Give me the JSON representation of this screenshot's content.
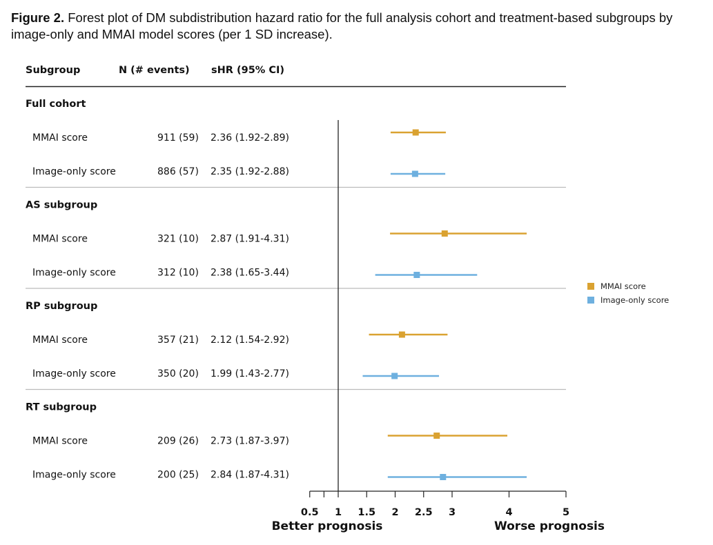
{
  "caption": {
    "label": "Figure 2.",
    "text": " Forest plot of DM subdistribution hazard ratio for the full analysis cohort and treatment-based subgroups by image-only and MMAI model scores (per 1 SD increase)."
  },
  "table_headers": {
    "subgroup": "Subgroup",
    "n_events": "N (# events)",
    "shr": "sHR (95% CI)"
  },
  "colors": {
    "mmai": "#DAA231",
    "image_only": "#6EB0DF",
    "axis": "#222222",
    "divider": "#bbbbbb"
  },
  "chart_data": {
    "type": "forest",
    "x_scale": "linear",
    "xlim": [
      0.5,
      5
    ],
    "x_ticks": [
      0.5,
      0.75,
      1,
      1.5,
      2,
      2.5,
      3,
      4,
      5
    ],
    "x_tick_labels": [
      "0.5",
      "",
      "1",
      "1.5",
      "2",
      "2.5",
      "3",
      "4",
      "5"
    ],
    "reference_line": 1,
    "xlabel_left": "Better prognosis",
    "xlabel_right": "Worse prognosis",
    "legend": [
      "MMAI score",
      "Image-only score"
    ],
    "legend_position": "right",
    "groups": [
      {
        "name": "Full cohort",
        "rows": [
          {
            "label": "MMAI score",
            "series": "mmai",
            "n_events": "911 (59)",
            "shr_text": "2.36 (1.92-2.89)",
            "hr": 2.36,
            "lo": 1.92,
            "hi": 2.89
          },
          {
            "label": "Image-only score",
            "series": "image_only",
            "n_events": "886 (57)",
            "shr_text": "2.35 (1.92-2.88)",
            "hr": 2.35,
            "lo": 1.92,
            "hi": 2.88
          }
        ]
      },
      {
        "name": "AS subgroup",
        "rows": [
          {
            "label": "MMAI score",
            "series": "mmai",
            "n_events": "321 (10)",
            "shr_text": "2.87 (1.91-4.31)",
            "hr": 2.87,
            "lo": 1.91,
            "hi": 4.31
          },
          {
            "label": "Image-only score",
            "series": "image_only",
            "n_events": "312 (10)",
            "shr_text": "2.38 (1.65-3.44)",
            "hr": 2.38,
            "lo": 1.65,
            "hi": 3.44
          }
        ]
      },
      {
        "name": "RP subgroup",
        "rows": [
          {
            "label": "MMAI score",
            "series": "mmai",
            "n_events": "357 (21)",
            "shr_text": "2.12 (1.54-2.92)",
            "hr": 2.12,
            "lo": 1.54,
            "hi": 2.92
          },
          {
            "label": "Image-only score",
            "series": "image_only",
            "n_events": "350 (20)",
            "shr_text": "1.99 (1.43-2.77)",
            "hr": 1.99,
            "lo": 1.43,
            "hi": 2.77
          }
        ]
      },
      {
        "name": "RT subgroup",
        "rows": [
          {
            "label": "MMAI score",
            "series": "mmai",
            "n_events": "209 (26)",
            "shr_text": "2.73 (1.87-3.97)",
            "hr": 2.73,
            "lo": 1.87,
            "hi": 3.97
          },
          {
            "label": "Image-only score",
            "series": "image_only",
            "n_events": "200 (25)",
            "shr_text": "2.84 (1.87-4.31)",
            "hr": 2.84,
            "lo": 1.87,
            "hi": 4.31
          }
        ]
      }
    ]
  }
}
